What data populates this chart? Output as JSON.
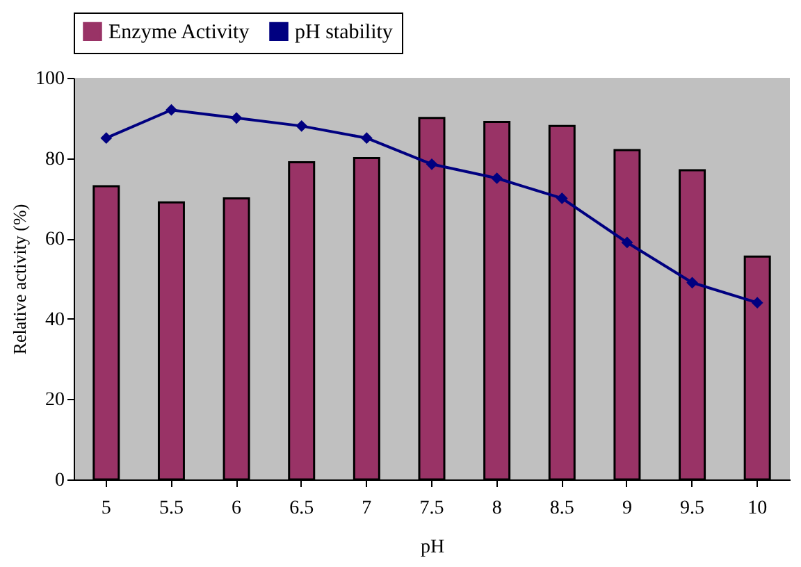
{
  "chart_data": {
    "type": "bar",
    "xlabel": "pH",
    "ylabel": "Relative activity (%)",
    "categories": [
      "5",
      "5.5",
      "6",
      "6.5",
      "7",
      "7.5",
      "8",
      "8.5",
      "9",
      "9.5",
      "10"
    ],
    "series": [
      {
        "name": "Enzyme Activity",
        "color": "#993366",
        "values": [
          73,
          69,
          70,
          79,
          80,
          90,
          89,
          88,
          82,
          77,
          55.5
        ]
      },
      {
        "name": "pH stability",
        "type": "line",
        "color": "#000080",
        "marker": "diamond",
        "values": [
          85,
          92,
          90,
          88,
          85,
          78.5,
          75,
          70,
          59,
          49,
          44
        ]
      }
    ],
    "ylim": [
      0,
      100
    ],
    "yticks": [
      0,
      20,
      40,
      60,
      80,
      100
    ],
    "grid": false,
    "legend": "top"
  }
}
